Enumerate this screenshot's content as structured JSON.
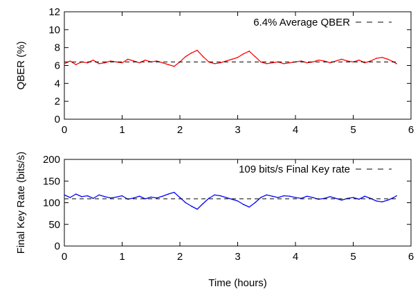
{
  "chart_data": [
    {
      "type": "line",
      "ylabel": "QBER (%)",
      "xlabel": "",
      "xlim": [
        0,
        6
      ],
      "ylim": [
        0,
        12
      ],
      "xticks": [
        "0",
        "1",
        "2",
        "3",
        "4",
        "5",
        "6"
      ],
      "yticks": [
        "0",
        "2",
        "4",
        "6",
        "8",
        "10",
        "12"
      ],
      "legend": "top-right",
      "series": [
        {
          "name": "6.4% Average QBER",
          "color": "#ff0000",
          "x": [
            0,
            0.1,
            0.2,
            0.3,
            0.4,
            0.5,
            0.6,
            0.7,
            0.8,
            0.9,
            1.0,
            1.1,
            1.2,
            1.3,
            1.4,
            1.5,
            1.6,
            1.7,
            1.8,
            1.9,
            2.0,
            2.1,
            2.2,
            2.3,
            2.4,
            2.5,
            2.6,
            2.7,
            2.8,
            2.9,
            3.0,
            3.1,
            3.2,
            3.3,
            3.4,
            3.5,
            3.6,
            3.7,
            3.8,
            3.9,
            4.0,
            4.1,
            4.2,
            4.3,
            4.4,
            4.5,
            4.6,
            4.7,
            4.8,
            4.9,
            5.0,
            5.1,
            5.2,
            5.3,
            5.4,
            5.5,
            5.6,
            5.7,
            5.75
          ],
          "values": [
            6.2,
            6.5,
            6.1,
            6.4,
            6.3,
            6.6,
            6.2,
            6.3,
            6.5,
            6.4,
            6.3,
            6.7,
            6.5,
            6.3,
            6.6,
            6.4,
            6.5,
            6.3,
            6.1,
            5.9,
            6.4,
            7.0,
            7.4,
            7.7,
            7.0,
            6.4,
            6.2,
            6.3,
            6.5,
            6.7,
            6.9,
            7.3,
            7.6,
            7.0,
            6.4,
            6.2,
            6.3,
            6.4,
            6.2,
            6.3,
            6.4,
            6.5,
            6.3,
            6.4,
            6.6,
            6.5,
            6.3,
            6.5,
            6.7,
            6.5,
            6.4,
            6.6,
            6.3,
            6.5,
            6.8,
            6.9,
            6.7,
            6.4,
            6.2
          ]
        },
        {
          "name": "6.4% Average QBER",
          "color": "#000000",
          "dashed": true,
          "x": [
            0,
            5.75
          ],
          "values": [
            6.4,
            6.4
          ]
        }
      ]
    },
    {
      "type": "line",
      "ylabel": "Final Key Rate (bits/s)",
      "xlabel": "Time (hours)",
      "xlim": [
        0,
        6
      ],
      "ylim": [
        0,
        200
      ],
      "xticks": [
        "0",
        "1",
        "2",
        "3",
        "4",
        "5",
        "6"
      ],
      "yticks": [
        "0",
        "50",
        "100",
        "150",
        "200"
      ],
      "legend": "top-right",
      "series": [
        {
          "name": "109 bits/s Final Key rate",
          "color": "#0000ff",
          "x": [
            0,
            0.1,
            0.2,
            0.3,
            0.4,
            0.5,
            0.6,
            0.7,
            0.8,
            0.9,
            1.0,
            1.1,
            1.2,
            1.3,
            1.4,
            1.5,
            1.6,
            1.7,
            1.8,
            1.9,
            2.0,
            2.1,
            2.2,
            2.3,
            2.4,
            2.5,
            2.6,
            2.7,
            2.8,
            2.9,
            3.0,
            3.1,
            3.2,
            3.3,
            3.4,
            3.5,
            3.6,
            3.7,
            3.8,
            3.9,
            4.0,
            4.1,
            4.2,
            4.3,
            4.4,
            4.5,
            4.6,
            4.7,
            4.8,
            4.9,
            5.0,
            5.1,
            5.2,
            5.3,
            5.4,
            5.5,
            5.6,
            5.7,
            5.75
          ],
          "values": [
            118,
            112,
            120,
            114,
            116,
            110,
            118,
            114,
            111,
            113,
            116,
            108,
            111,
            115,
            109,
            113,
            111,
            115,
            120,
            124,
            112,
            100,
            92,
            85,
            98,
            110,
            118,
            116,
            112,
            108,
            104,
            96,
            90,
            100,
            112,
            118,
            115,
            112,
            116,
            115,
            112,
            110,
            115,
            112,
            108,
            110,
            114,
            110,
            106,
            110,
            112,
            108,
            115,
            110,
            104,
            102,
            106,
            112,
            116
          ]
        },
        {
          "name": "109 bits/s Final Key rate",
          "color": "#000000",
          "dashed": true,
          "x": [
            0,
            5.75
          ],
          "values": [
            109,
            109
          ]
        }
      ]
    }
  ]
}
